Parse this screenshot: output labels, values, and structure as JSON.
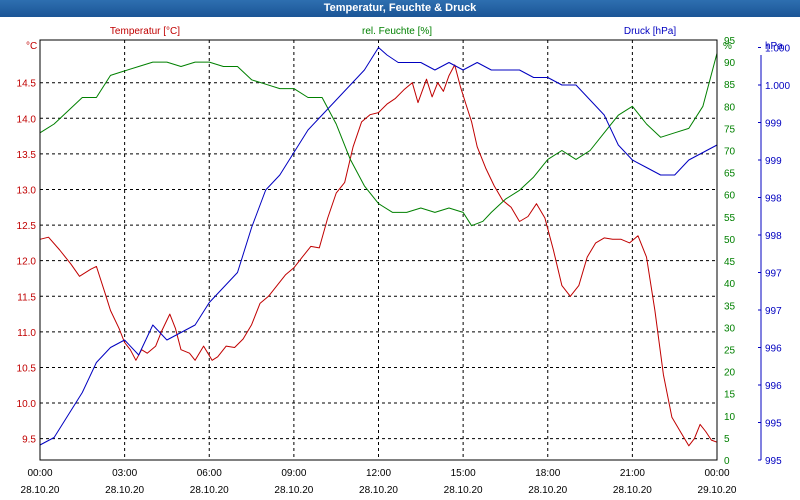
{
  "window": {
    "title": "Temperatur, Feuchte & Druck"
  },
  "legend": {
    "temperature": "Temperatur [°C]",
    "humidity": "rel. Feuchte [%]",
    "pressure": "Druck [hPa]"
  },
  "colors": {
    "temperature": "#c00000",
    "humidity": "#008000",
    "pressure": "#0000c0",
    "grid": "#000000",
    "frame": "#000000"
  },
  "chart_data": {
    "type": "line",
    "title": "Temperatur, Feuchte & Druck",
    "x_unit": "hours since 28.10.20 00:00",
    "xlim": [
      0,
      24
    ],
    "x_ticks": [
      {
        "t": 0,
        "time": "00:00",
        "date": "28.10.20"
      },
      {
        "t": 3,
        "time": "03:00",
        "date": "28.10.20"
      },
      {
        "t": 6,
        "time": "06:00",
        "date": "28.10.20"
      },
      {
        "t": 9,
        "time": "09:00",
        "date": "28.10.20"
      },
      {
        "t": 12,
        "time": "12:00",
        "date": "28.10.20"
      },
      {
        "t": 15,
        "time": "15:00",
        "date": "28.10.20"
      },
      {
        "t": 18,
        "time": "18:00",
        "date": "28.10.20"
      },
      {
        "t": 21,
        "time": "21:00",
        "date": "28.10.20"
      },
      {
        "t": 24,
        "time": "00:00",
        "date": "29.10.20"
      }
    ],
    "axes": {
      "temperature": {
        "unit": "°C",
        "ylim": [
          9.2,
          15.1
        ],
        "ticks": [
          "9.5",
          "10.0",
          "10.5",
          "11.0",
          "11.5",
          "12.0",
          "12.5",
          "13.0",
          "13.5",
          "14.0",
          "14.5"
        ],
        "tick_values": [
          9.5,
          10.0,
          10.5,
          11.0,
          11.5,
          12.0,
          12.5,
          13.0,
          13.5,
          14.0,
          14.5
        ]
      },
      "humidity": {
        "unit": "%",
        "ylim": [
          0,
          95
        ],
        "ticks": [
          "0",
          "5",
          "10",
          "15",
          "20",
          "25",
          "30",
          "35",
          "40",
          "45",
          "50",
          "55",
          "60",
          "65",
          "70",
          "75",
          "80",
          "85",
          "90",
          "95"
        ],
        "tick_values": [
          0,
          5,
          10,
          15,
          20,
          25,
          30,
          35,
          40,
          45,
          50,
          55,
          60,
          65,
          70,
          75,
          80,
          85,
          90,
          95
        ]
      },
      "pressure": {
        "unit": "hPa",
        "ylim": [
          995,
          1000.6
        ],
        "ticks": [
          "995",
          "995",
          "996",
          "996",
          "997",
          "997",
          "998",
          "998",
          "999",
          "999",
          "1.000",
          "1.000"
        ],
        "tick_values": [
          995.0,
          995.5,
          996.0,
          996.5,
          997.0,
          997.5,
          998.0,
          998.5,
          999.0,
          999.5,
          1000.0,
          1000.5
        ]
      }
    },
    "series": [
      {
        "name": "Temperatur [°C]",
        "axis": "temperature",
        "x": [
          0,
          0.3,
          0.7,
          1.1,
          1.4,
          1.8,
          2.0,
          2.3,
          2.5,
          2.8,
          3.0,
          3.2,
          3.4,
          3.6,
          3.8,
          4.1,
          4.3,
          4.6,
          4.8,
          5.0,
          5.3,
          5.5,
          5.8,
          6.1,
          6.3,
          6.6,
          6.9,
          7.2,
          7.5,
          7.8,
          8.1,
          8.4,
          8.7,
          9.0,
          9.3,
          9.6,
          9.9,
          10.2,
          10.5,
          10.8,
          11.1,
          11.4,
          11.7,
          12.0,
          12.3,
          12.6,
          12.9,
          13.2,
          13.4,
          13.7,
          13.9,
          14.1,
          14.3,
          14.5,
          14.7,
          14.9,
          15.1,
          15.3,
          15.5,
          15.8,
          16.1,
          16.4,
          16.7,
          17.0,
          17.3,
          17.6,
          17.9,
          18.2,
          18.5,
          18.8,
          19.1,
          19.4,
          19.7,
          20.0,
          20.3,
          20.6,
          20.9,
          21.2,
          21.5,
          21.8,
          22.1,
          22.4,
          22.7,
          23.0,
          23.2,
          23.4,
          23.6,
          23.8,
          24.0
        ],
        "values": [
          12.3,
          12.33,
          12.15,
          11.95,
          11.78,
          11.88,
          11.92,
          11.55,
          11.3,
          11.05,
          10.85,
          10.75,
          10.6,
          10.75,
          10.7,
          10.8,
          11.0,
          11.25,
          11.05,
          10.75,
          10.7,
          10.6,
          10.8,
          10.6,
          10.65,
          10.8,
          10.78,
          10.9,
          11.1,
          11.4,
          11.5,
          11.65,
          11.8,
          11.9,
          12.05,
          12.2,
          12.18,
          12.6,
          12.95,
          13.1,
          13.6,
          13.95,
          14.05,
          14.08,
          14.2,
          14.28,
          14.4,
          14.5,
          14.22,
          14.55,
          14.3,
          14.5,
          14.38,
          14.6,
          14.75,
          14.45,
          14.2,
          13.95,
          13.6,
          13.3,
          13.05,
          12.85,
          12.75,
          12.55,
          12.62,
          12.8,
          12.6,
          12.15,
          11.65,
          11.5,
          11.65,
          12.05,
          12.25,
          12.32,
          12.3,
          12.3,
          12.25,
          12.35,
          12.05,
          11.3,
          10.4,
          9.8,
          9.6,
          9.4,
          9.5,
          9.7,
          9.6,
          9.48,
          9.45
        ]
      },
      {
        "name": "rel. Feuchte [%]",
        "axis": "humidity",
        "x": [
          0,
          0.5,
          1.0,
          1.5,
          2.0,
          2.5,
          3.0,
          3.5,
          4.0,
          4.5,
          5.0,
          5.5,
          6.0,
          6.5,
          7.0,
          7.5,
          8.0,
          8.5,
          9.0,
          9.5,
          10.0,
          10.5,
          11.0,
          11.5,
          12.0,
          12.5,
          13.0,
          13.5,
          14.0,
          14.5,
          15.0,
          15.3,
          15.7,
          16.0,
          16.5,
          17.0,
          17.5,
          18.0,
          18.5,
          19.0,
          19.5,
          20.0,
          20.5,
          21.0,
          21.5,
          22.0,
          22.5,
          23.0,
          23.5,
          24.0
        ],
        "values": [
          74,
          76,
          79,
          82,
          82,
          87,
          88,
          89,
          90,
          90,
          89,
          90,
          90,
          89,
          89,
          86,
          85,
          84,
          84,
          82,
          82,
          76,
          68,
          62,
          58,
          56,
          56,
          57,
          56,
          57,
          56,
          53,
          54,
          56,
          59,
          61,
          64,
          68,
          70,
          68,
          70,
          74,
          78,
          80,
          76,
          73,
          74,
          75,
          80,
          92
        ]
      },
      {
        "name": "Druck [hPa]",
        "axis": "pressure",
        "x": [
          0,
          0.5,
          1.0,
          1.5,
          2.0,
          2.5,
          3.0,
          3.5,
          4.0,
          4.5,
          5.0,
          5.5,
          6.0,
          6.5,
          7.0,
          7.5,
          8.0,
          8.5,
          9.0,
          9.5,
          10.0,
          10.5,
          11.0,
          11.5,
          12.0,
          12.3,
          12.7,
          13.0,
          13.5,
          14.0,
          14.5,
          15.0,
          15.5,
          16.0,
          16.5,
          17.0,
          17.5,
          18.0,
          18.5,
          19.0,
          19.5,
          20.0,
          20.5,
          21.0,
          21.5,
          22.0,
          22.5,
          23.0,
          23.5,
          24.0
        ],
        "values": [
          995.2,
          995.3,
          995.6,
          995.9,
          996.3,
          996.5,
          996.6,
          996.4,
          996.8,
          996.6,
          996.7,
          996.8,
          997.1,
          997.3,
          997.5,
          998.1,
          998.6,
          998.8,
          999.1,
          999.4,
          999.6,
          999.8,
          1000.0,
          1000.2,
          1000.5,
          1000.4,
          1000.3,
          1000.3,
          1000.3,
          1000.2,
          1000.3,
          1000.2,
          1000.3,
          1000.2,
          1000.2,
          1000.2,
          1000.1,
          1000.1,
          1000.0,
          1000.0,
          999.8,
          999.6,
          999.2,
          999.0,
          998.9,
          998.8,
          998.8,
          999.0,
          999.1,
          999.2
        ]
      }
    ]
  }
}
